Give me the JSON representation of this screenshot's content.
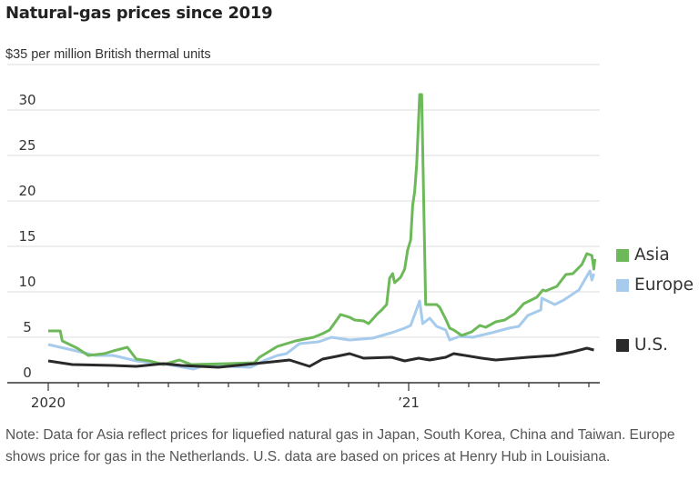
{
  "chart_data": {
    "type": "line",
    "title": "Natural-gas prices since 2019",
    "ylabel": "$35 per million British thermal units",
    "ylim": [
      0,
      35
    ],
    "y_ticks": [
      0,
      5,
      10,
      15,
      20,
      25,
      30
    ],
    "xlim": [
      "2020-01-01",
      "2021-07-15"
    ],
    "x_ticks": [
      {
        "date": "2020-01-01",
        "label": "2020"
      },
      {
        "date": "2021-01-01",
        "label": "’21"
      }
    ],
    "x_minor_ticks": "monthly",
    "grid": true,
    "legend_placement": "right",
    "series": [
      {
        "name": "Asia",
        "color": "#6db95a",
        "points": [
          [
            "2020-01-01",
            5.7
          ],
          [
            "2020-01-13",
            5.7
          ],
          [
            "2020-01-15",
            4.6
          ],
          [
            "2020-01-30",
            3.8
          ],
          [
            "2020-02-11",
            3.0
          ],
          [
            "2020-02-27",
            3.2
          ],
          [
            "2020-03-06",
            3.5
          ],
          [
            "2020-03-20",
            3.9
          ],
          [
            "2020-03-29",
            2.6
          ],
          [
            "2020-04-12",
            2.4
          ],
          [
            "2020-04-26",
            2.0
          ],
          [
            "2020-05-12",
            2.5
          ],
          [
            "2020-05-24",
            2.0
          ],
          [
            "2020-06-30",
            2.1
          ],
          [
            "2020-07-27",
            2.2
          ],
          [
            "2020-08-02",
            2.8
          ],
          [
            "2020-08-20",
            4.0
          ],
          [
            "2020-09-08",
            4.6
          ],
          [
            "2020-09-26",
            5.0
          ],
          [
            "2020-10-05",
            5.4
          ],
          [
            "2020-10-12",
            5.8
          ],
          [
            "2020-10-23",
            7.5
          ],
          [
            "2020-11-02",
            7.2
          ],
          [
            "2020-11-07",
            6.9
          ],
          [
            "2020-11-16",
            6.8
          ],
          [
            "2020-11-21",
            6.5
          ],
          [
            "2020-11-30",
            7.6
          ],
          [
            "2020-12-04",
            8.0
          ],
          [
            "2020-12-09",
            8.6
          ],
          [
            "2020-12-12",
            11.5
          ],
          [
            "2020-12-15",
            12.0
          ],
          [
            "2020-12-17",
            11.0
          ],
          [
            "2020-12-23",
            11.6
          ],
          [
            "2020-12-27",
            12.5
          ],
          [
            "2020-12-30",
            14.6
          ],
          [
            "2021-01-03",
            15.7
          ],
          [
            "2021-01-05",
            19.5
          ],
          [
            "2021-01-07",
            21.0
          ],
          [
            "2021-01-09",
            24.0
          ],
          [
            "2021-01-12",
            31.7
          ],
          [
            "2021-01-14",
            31.7
          ],
          [
            "2021-01-18",
            8.6
          ],
          [
            "2021-01-29",
            8.6
          ],
          [
            "2021-02-02",
            8.3
          ],
          [
            "2021-02-08",
            7.0
          ],
          [
            "2021-02-12",
            6.0
          ],
          [
            "2021-02-16",
            5.8
          ],
          [
            "2021-02-24",
            5.2
          ],
          [
            "2021-03-04",
            5.6
          ],
          [
            "2021-03-12",
            6.3
          ],
          [
            "2021-03-18",
            6.1
          ],
          [
            "2021-03-28",
            6.7
          ],
          [
            "2021-04-07",
            6.9
          ],
          [
            "2021-04-17",
            7.6
          ],
          [
            "2021-04-26",
            8.7
          ],
          [
            "2021-05-09",
            9.4
          ],
          [
            "2021-05-15",
            10.2
          ],
          [
            "2021-05-18",
            10.1
          ],
          [
            "2021-05-29",
            10.6
          ],
          [
            "2021-06-08",
            11.9
          ],
          [
            "2021-06-15",
            12.0
          ],
          [
            "2021-06-24",
            13.0
          ],
          [
            "2021-06-29",
            14.2
          ],
          [
            "2021-07-04",
            14.0
          ],
          [
            "2021-07-06",
            12.5
          ],
          [
            "2021-07-07",
            13.6
          ]
        ]
      },
      {
        "name": "Europe",
        "color": "#a6cbec",
        "points": [
          [
            "2020-01-01",
            4.2
          ],
          [
            "2020-01-25",
            3.6
          ],
          [
            "2020-02-18",
            3.0
          ],
          [
            "2020-03-06",
            3.0
          ],
          [
            "2020-03-29",
            2.4
          ],
          [
            "2020-05-01",
            2.0
          ],
          [
            "2020-05-26",
            1.5
          ],
          [
            "2020-06-07",
            1.9
          ],
          [
            "2020-06-30",
            1.8
          ],
          [
            "2020-07-23",
            1.7
          ],
          [
            "2020-08-08",
            2.5
          ],
          [
            "2020-08-20",
            3.0
          ],
          [
            "2020-08-29",
            3.2
          ],
          [
            "2020-09-12",
            4.3
          ],
          [
            "2020-10-01",
            4.5
          ],
          [
            "2020-10-14",
            5.0
          ],
          [
            "2020-11-02",
            4.7
          ],
          [
            "2020-11-25",
            4.9
          ],
          [
            "2020-12-14",
            5.5
          ],
          [
            "2020-12-27",
            6.0
          ],
          [
            "2021-01-03",
            6.3
          ],
          [
            "2021-01-12",
            9.0
          ],
          [
            "2021-01-15",
            6.5
          ],
          [
            "2021-01-22",
            7.1
          ],
          [
            "2021-01-29",
            6.2
          ],
          [
            "2021-02-08",
            5.8
          ],
          [
            "2021-02-12",
            4.7
          ],
          [
            "2021-02-22",
            5.1
          ],
          [
            "2021-03-05",
            5.0
          ],
          [
            "2021-03-24",
            5.5
          ],
          [
            "2021-04-11",
            6.0
          ],
          [
            "2021-04-21",
            6.2
          ],
          [
            "2021-04-30",
            7.4
          ],
          [
            "2021-05-13",
            8.0
          ],
          [
            "2021-05-14",
            9.3
          ],
          [
            "2021-05-27",
            8.6
          ],
          [
            "2021-06-06",
            9.1
          ],
          [
            "2021-06-21",
            10.2
          ],
          [
            "2021-07-02",
            12.3
          ],
          [
            "2021-07-04",
            11.3
          ],
          [
            "2021-07-06",
            12.0
          ]
        ]
      },
      {
        "name": "U.S.",
        "color": "#2a2a2a",
        "points": [
          [
            "2020-01-01",
            2.4
          ],
          [
            "2020-01-25",
            2.0
          ],
          [
            "2020-03-06",
            1.9
          ],
          [
            "2020-03-29",
            1.8
          ],
          [
            "2020-04-26",
            2.1
          ],
          [
            "2020-05-14",
            1.9
          ],
          [
            "2020-06-21",
            1.7
          ],
          [
            "2020-07-18",
            2.0
          ],
          [
            "2020-08-15",
            2.3
          ],
          [
            "2020-09-02",
            2.5
          ],
          [
            "2020-09-22",
            1.8
          ],
          [
            "2020-10-05",
            2.6
          ],
          [
            "2020-10-19",
            2.9
          ],
          [
            "2020-11-02",
            3.2
          ],
          [
            "2020-11-16",
            2.7
          ],
          [
            "2020-12-14",
            2.8
          ],
          [
            "2020-12-27",
            2.4
          ],
          [
            "2021-01-11",
            2.7
          ],
          [
            "2021-01-22",
            2.5
          ],
          [
            "2021-02-08",
            2.8
          ],
          [
            "2021-02-16",
            3.2
          ],
          [
            "2021-03-14",
            2.7
          ],
          [
            "2021-03-28",
            2.5
          ],
          [
            "2021-04-30",
            2.8
          ],
          [
            "2021-05-27",
            3.0
          ],
          [
            "2021-06-15",
            3.4
          ],
          [
            "2021-06-29",
            3.8
          ],
          [
            "2021-07-06",
            3.6
          ]
        ]
      }
    ],
    "note": "Note: Data for Asia reflect prices for liquefied natural gas in Japan, South Korea, China and Taiwan. Europe shows price for gas in the Netherlands. U.S. data are based on prices at Henry Hub in Louisiana."
  }
}
